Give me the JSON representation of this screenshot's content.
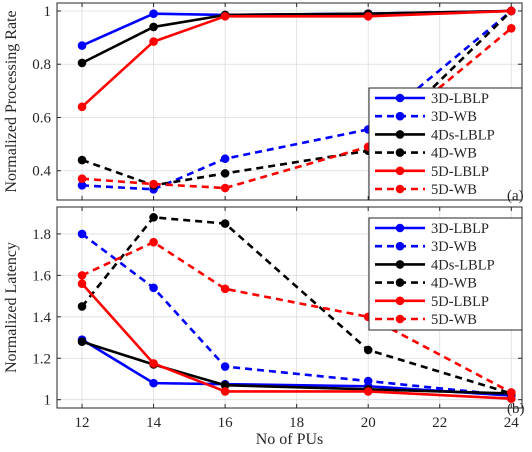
{
  "chart_data": [
    {
      "type": "line",
      "panel_label": "(a)",
      "ylabel": "Normalized Processing Rate",
      "xlabel": "",
      "xlim": [
        11.3,
        24.3
      ],
      "ylim": [
        0.29,
        1.03
      ],
      "xticks": [
        12,
        14,
        16,
        18,
        20,
        22,
        24
      ],
      "yticks": [
        0.4,
        0.6,
        0.8,
        1
      ],
      "ytick_labels": [
        "0.4",
        "0.6",
        "0.8",
        "1"
      ],
      "show_x_tick_labels": false,
      "grid": true,
      "legend_position": "bottom-right",
      "x": [
        12,
        14,
        16,
        20,
        24
      ],
      "series": [
        {
          "name": "3D-LBLP",
          "color": "#0000ff",
          "dash": "solid",
          "values": [
            0.87,
            0.99,
            0.985,
            0.99,
            1.0
          ]
        },
        {
          "name": "3D-WB",
          "color": "#0000ff",
          "dash": "dashed",
          "values": [
            0.345,
            0.33,
            0.445,
            0.555,
            1.0
          ]
        },
        {
          "name": "4Ds-LBLP",
          "color": "#000000",
          "dash": "solid",
          "values": [
            0.805,
            0.94,
            0.985,
            0.99,
            1.0
          ]
        },
        {
          "name": "4D-WB",
          "color": "#000000",
          "dash": "dashed",
          "values": [
            0.44,
            0.345,
            0.39,
            0.475,
            1.0
          ]
        },
        {
          "name": "5D-LBLP",
          "color": "#ff0000",
          "dash": "solid",
          "values": [
            0.64,
            0.885,
            0.98,
            0.98,
            1.0
          ]
        },
        {
          "name": "5D-WB",
          "color": "#ff0000",
          "dash": "dashed",
          "values": [
            0.37,
            0.35,
            0.335,
            0.49,
            0.935
          ]
        }
      ]
    },
    {
      "type": "line",
      "panel_label": "(b)",
      "ylabel": "Normalized Latency",
      "xlabel": "No of PUs",
      "xlim": [
        11.3,
        24.3
      ],
      "ylim": [
        0.96,
        1.93
      ],
      "xticks": [
        12,
        14,
        16,
        18,
        20,
        22,
        24
      ],
      "yticks": [
        1,
        1.2,
        1.4,
        1.6,
        1.8
      ],
      "ytick_labels": [
        "1",
        "1.2",
        "1.4",
        "1.6",
        "1.8"
      ],
      "show_x_tick_labels": true,
      "grid": true,
      "legend_position": "top-right",
      "x": [
        12,
        14,
        16,
        20,
        24
      ],
      "series": [
        {
          "name": "3D-LBLP",
          "color": "#0000ff",
          "dash": "solid",
          "values": [
            1.29,
            1.08,
            1.075,
            1.065,
            1.02
          ]
        },
        {
          "name": "3D-WB",
          "color": "#0000ff",
          "dash": "dashed",
          "values": [
            1.8,
            1.54,
            1.16,
            1.09,
            1.02
          ]
        },
        {
          "name": "4Ds-LBLP",
          "color": "#000000",
          "dash": "solid",
          "values": [
            1.28,
            1.17,
            1.07,
            1.05,
            1.03
          ]
        },
        {
          "name": "4D-WB",
          "color": "#000000",
          "dash": "dashed",
          "values": [
            1.45,
            1.88,
            1.85,
            1.24,
            1.03
          ]
        },
        {
          "name": "5D-LBLP",
          "color": "#ff0000",
          "dash": "solid",
          "values": [
            1.56,
            1.175,
            1.04,
            1.04,
            1.005
          ]
        },
        {
          "name": "5D-WB",
          "color": "#ff0000",
          "dash": "dashed",
          "values": [
            1.6,
            1.76,
            1.535,
            1.4,
            1.035
          ]
        }
      ]
    }
  ]
}
